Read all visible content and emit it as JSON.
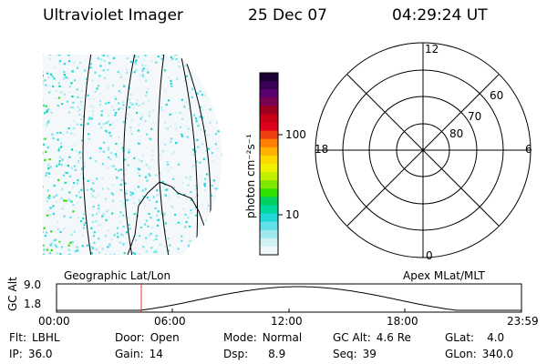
{
  "header": {
    "title": "Ultraviolet Imager",
    "date": "25 Dec 07",
    "time": "04:29:24 UT"
  },
  "colorbar": {
    "unit_label": "photon cm⁻²s⁻¹",
    "ticks": [
      "100",
      "10"
    ],
    "colors": [
      "#1a0033",
      "#3a0055",
      "#5a0070",
      "#7a0050",
      "#a00020",
      "#c80018",
      "#e0001a",
      "#f04010",
      "#ff8000",
      "#ffb000",
      "#ffd800",
      "#f0f000",
      "#c0f000",
      "#80e800",
      "#30e000",
      "#00d060",
      "#00d8a0",
      "#20d8d8",
      "#60e0e8",
      "#a0e8f0",
      "#d0f0f4",
      "#f0f8fa"
    ]
  },
  "polar": {
    "mlt_labels": {
      "top": "12",
      "left": "18",
      "right": "6",
      "bottom": "0"
    },
    "lat_labels": [
      "60",
      "70",
      "80"
    ]
  },
  "timeline": {
    "left_label_top": "Geographic Lat/Lon",
    "right_label_top": "Apex MLat/MLT",
    "ylabel": "GC Alt",
    "yticks": [
      "9.0",
      "1.8"
    ],
    "xticks": [
      "00:00",
      "06:00",
      "12:00",
      "18:00",
      "23:59"
    ],
    "current_time_color": "#e03030"
  },
  "status": {
    "row1": [
      {
        "key": "Flt:",
        "value": "LBHL"
      },
      {
        "key": "Door:",
        "value": "Open"
      },
      {
        "key": "Mode:",
        "value": "Normal"
      },
      {
        "key": "GC Alt:",
        "value": "4.6 Re"
      },
      {
        "key": "GLat:",
        "value": "4.0"
      }
    ],
    "row2": [
      {
        "key": "IP:",
        "value": "36.0"
      },
      {
        "key": "Gain:",
        "value": "14"
      },
      {
        "key": "Dsp:",
        "value": "8.9"
      },
      {
        "key": "Seq:",
        "value": "39"
      },
      {
        "key": "GLon:",
        "value": "340.0"
      }
    ]
  }
}
